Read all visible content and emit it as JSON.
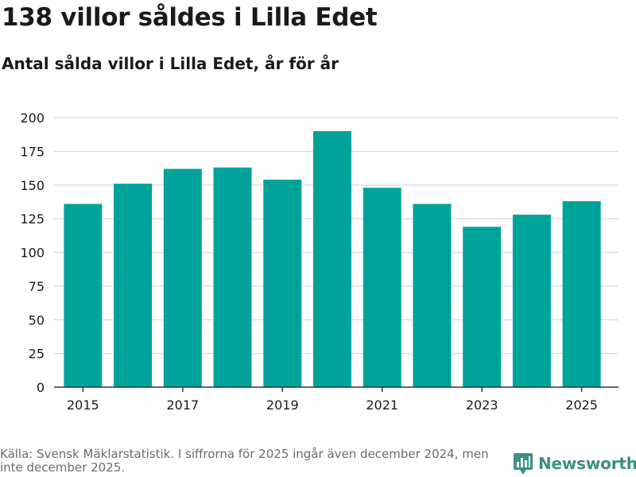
{
  "header": {
    "title": "138 villor såldes i Lilla Edet",
    "subtitle": "Antal sålda villor i Lilla Edet, år för år"
  },
  "footer": {
    "source_note": "Källa: Svensk Mäklarstatistik. I siffrorna för 2025 ingår även december 2024, men inte december 2025.",
    "brand": "Newsworthy"
  },
  "colors": {
    "bar": "#00a39a",
    "grid": "#d9d9d9",
    "axis": "#333333",
    "brand": "#3d8f87"
  },
  "chart_data": {
    "type": "bar",
    "title": "138 villor såldes i Lilla Edet",
    "subtitle": "Antal sålda villor i Lilla Edet, år för år",
    "xlabel": "",
    "ylabel": "",
    "categories": [
      "2015",
      "2016",
      "2017",
      "2018",
      "2019",
      "2020",
      "2021",
      "2022",
      "2023",
      "2024",
      "2025"
    ],
    "values": [
      136,
      151,
      162,
      163,
      154,
      190,
      148,
      136,
      119,
      128,
      138
    ],
    "ylim": [
      0,
      200
    ],
    "yticks": [
      0,
      25,
      50,
      75,
      100,
      125,
      150,
      175,
      200
    ],
    "xtick_labels": [
      "2015",
      "2017",
      "2019",
      "2021",
      "2023",
      "2025"
    ],
    "grid": true,
    "legend": "none"
  }
}
